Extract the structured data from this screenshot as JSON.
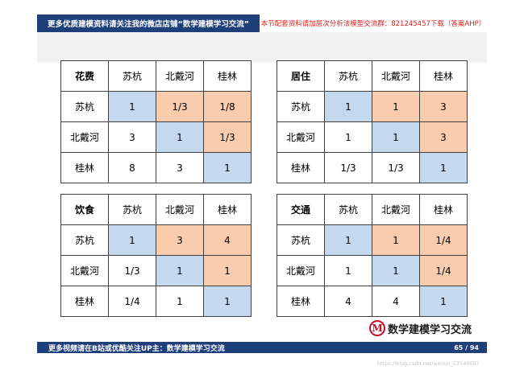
{
  "header": {
    "left_text": "更多优质建模资料请关注我的微店店铺“数学建模学习交流”",
    "right_text": "本节配套资料请加层次分析法模型交流群：821245457下载（答案AHP）"
  },
  "footer": {
    "left_text": "更多视频请在B站或优酷关注UP主：数学建模学习交流",
    "page": "65 / 94",
    "watermark": "https://blog.csdn.net/weixin_53540057"
  },
  "logo": {
    "mark": "M",
    "text": "数学建模学习交流"
  },
  "colors": {
    "blue": "#c5d9ee",
    "orange": "#f8ccad",
    "criterion": "#e00000",
    "bar": "#1f3f7a"
  },
  "matrices": [
    {
      "criterion": "花费",
      "headers": [
        "苏杭",
        "北戴河",
        "桂林"
      ],
      "rows": [
        {
          "label": "苏杭",
          "cells": [
            "1",
            "1/3",
            "1/8"
          ]
        },
        {
          "label": "北戴河",
          "cells": [
            "3",
            "1",
            "1/3"
          ]
        },
        {
          "label": "桂林",
          "cells": [
            "8",
            "3",
            "1"
          ]
        }
      ]
    },
    {
      "criterion": "居住",
      "headers": [
        "苏杭",
        "北戴河",
        "桂林"
      ],
      "rows": [
        {
          "label": "苏杭",
          "cells": [
            "1",
            "1",
            "3"
          ]
        },
        {
          "label": "北戴河",
          "cells": [
            "1",
            "1",
            "3"
          ]
        },
        {
          "label": "桂林",
          "cells": [
            "1/3",
            "1/3",
            "1"
          ]
        }
      ]
    },
    {
      "criterion": "饮食",
      "headers": [
        "苏杭",
        "北戴河",
        "桂林"
      ],
      "rows": [
        {
          "label": "苏杭",
          "cells": [
            "1",
            "3",
            "4"
          ]
        },
        {
          "label": "北戴河",
          "cells": [
            "1/3",
            "1",
            "1"
          ]
        },
        {
          "label": "桂林",
          "cells": [
            "1/4",
            "1",
            "1"
          ]
        }
      ]
    },
    {
      "criterion": "交通",
      "headers": [
        "苏杭",
        "北戴河",
        "桂林"
      ],
      "rows": [
        {
          "label": "苏杭",
          "cells": [
            "1",
            "1",
            "1/4"
          ]
        },
        {
          "label": "北戴河",
          "cells": [
            "1",
            "1",
            "1/4"
          ]
        },
        {
          "label": "桂林",
          "cells": [
            "4",
            "4",
            "1"
          ]
        }
      ]
    }
  ]
}
